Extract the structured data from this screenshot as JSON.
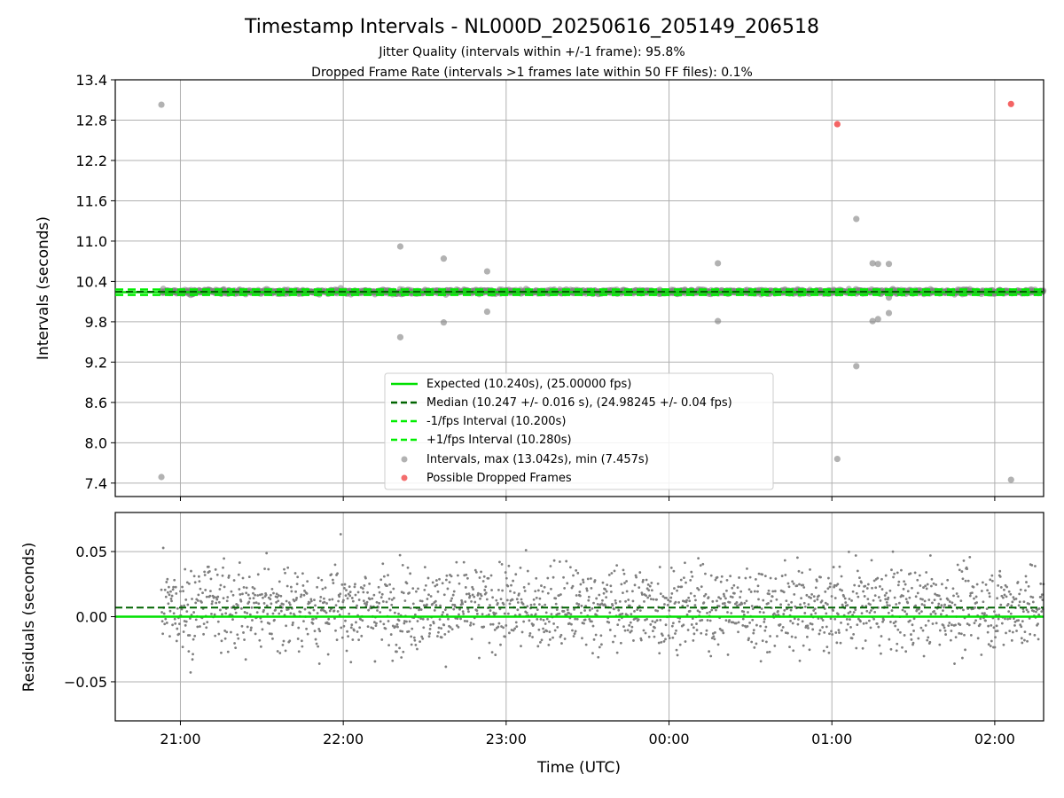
{
  "colors": {
    "expected": "#00e000",
    "median": "#006400",
    "interval_band": "#00ee00",
    "points": "#7f7f7f",
    "dropped": "#f03030",
    "grid": "#b0b0b0"
  },
  "chart_data": [
    {
      "type": "scatter",
      "title": "Timestamp Intervals - NL000D_20250616_205149_206518",
      "subtitle_lines": [
        "Jitter Quality (intervals within +/-1 frame): 95.8%",
        "Dropped Frame Rate (intervals >1 frames late within 50 FF files): 0.1%"
      ],
      "ylabel": "Intervals (seconds)",
      "ylim": [
        7.2,
        13.4
      ],
      "xlim": [
        "20:36",
        "02:18"
      ],
      "yticks": [
        "7.4",
        "8.0",
        "8.6",
        "9.2",
        "9.8",
        "10.4",
        "11.0",
        "11.6",
        "12.2",
        "12.8",
        "13.4"
      ],
      "grid": true,
      "legend_position": "lower center",
      "legend": [
        {
          "label": "Expected (10.240s), (25.00000 fps)",
          "kind": "solid-line"
        },
        {
          "label": "Median (10.247 +/- 0.016 s), (24.98245 +/- 0.04 fps)",
          "kind": "dashed-dark"
        },
        {
          "label": "-1/fps Interval (10.200s)",
          "kind": "dashed-light"
        },
        {
          "label": "+1/fps Interval (10.280s)",
          "kind": "dashed-light"
        },
        {
          "label": "Intervals, max (13.042s), min (7.457s)",
          "kind": "gray-dot"
        },
        {
          "label": "Possible Dropped Frames",
          "kind": "red-dot"
        }
      ],
      "reference_lines": {
        "expected": 10.24,
        "median": 10.247,
        "minus_1_fps": 10.2,
        "plus_1_fps": 10.28
      },
      "intervals_max": 13.042,
      "intervals_min": 7.457,
      "outliers": [
        {
          "x": "20:53",
          "y": 13.03
        },
        {
          "x": "20:53",
          "y": 7.49
        },
        {
          "x": "22:21",
          "y": 10.92
        },
        {
          "x": "22:21",
          "y": 9.57
        },
        {
          "x": "22:37",
          "y": 10.74
        },
        {
          "x": "22:37",
          "y": 9.79
        },
        {
          "x": "22:53",
          "y": 10.55
        },
        {
          "x": "22:53",
          "y": 9.95
        },
        {
          "x": "00:18",
          "y": 10.67
        },
        {
          "x": "00:18",
          "y": 9.81
        },
        {
          "x": "01:02",
          "y": 7.76
        },
        {
          "x": "01:09",
          "y": 11.33
        },
        {
          "x": "01:09",
          "y": 9.14
        },
        {
          "x": "01:15",
          "y": 10.67
        },
        {
          "x": "01:15",
          "y": 9.81
        },
        {
          "x": "01:17",
          "y": 10.66
        },
        {
          "x": "01:17",
          "y": 9.84
        },
        {
          "x": "01:21",
          "y": 10.66
        },
        {
          "x": "01:21",
          "y": 10.16
        },
        {
          "x": "01:21",
          "y": 9.93
        },
        {
          "x": "02:06",
          "y": 7.45
        }
      ],
      "dropped_frames": [
        {
          "x": "01:02",
          "y": 12.74
        },
        {
          "x": "02:06",
          "y": 13.04
        }
      ]
    },
    {
      "type": "scatter",
      "xlabel": "Time (UTC)",
      "ylabel": "Residuals (seconds)",
      "ylim": [
        -0.08,
        0.08
      ],
      "yticks": [
        "−0.05",
        "0.00",
        "0.05"
      ],
      "xticks": [
        "21:00",
        "22:00",
        "23:00",
        "00:00",
        "01:00",
        "02:00"
      ],
      "xlim": [
        "20:36",
        "02:18"
      ],
      "grid": true,
      "expected_residual": 0.0,
      "median_residual": 0.007,
      "residual_spread": 0.016
    }
  ]
}
